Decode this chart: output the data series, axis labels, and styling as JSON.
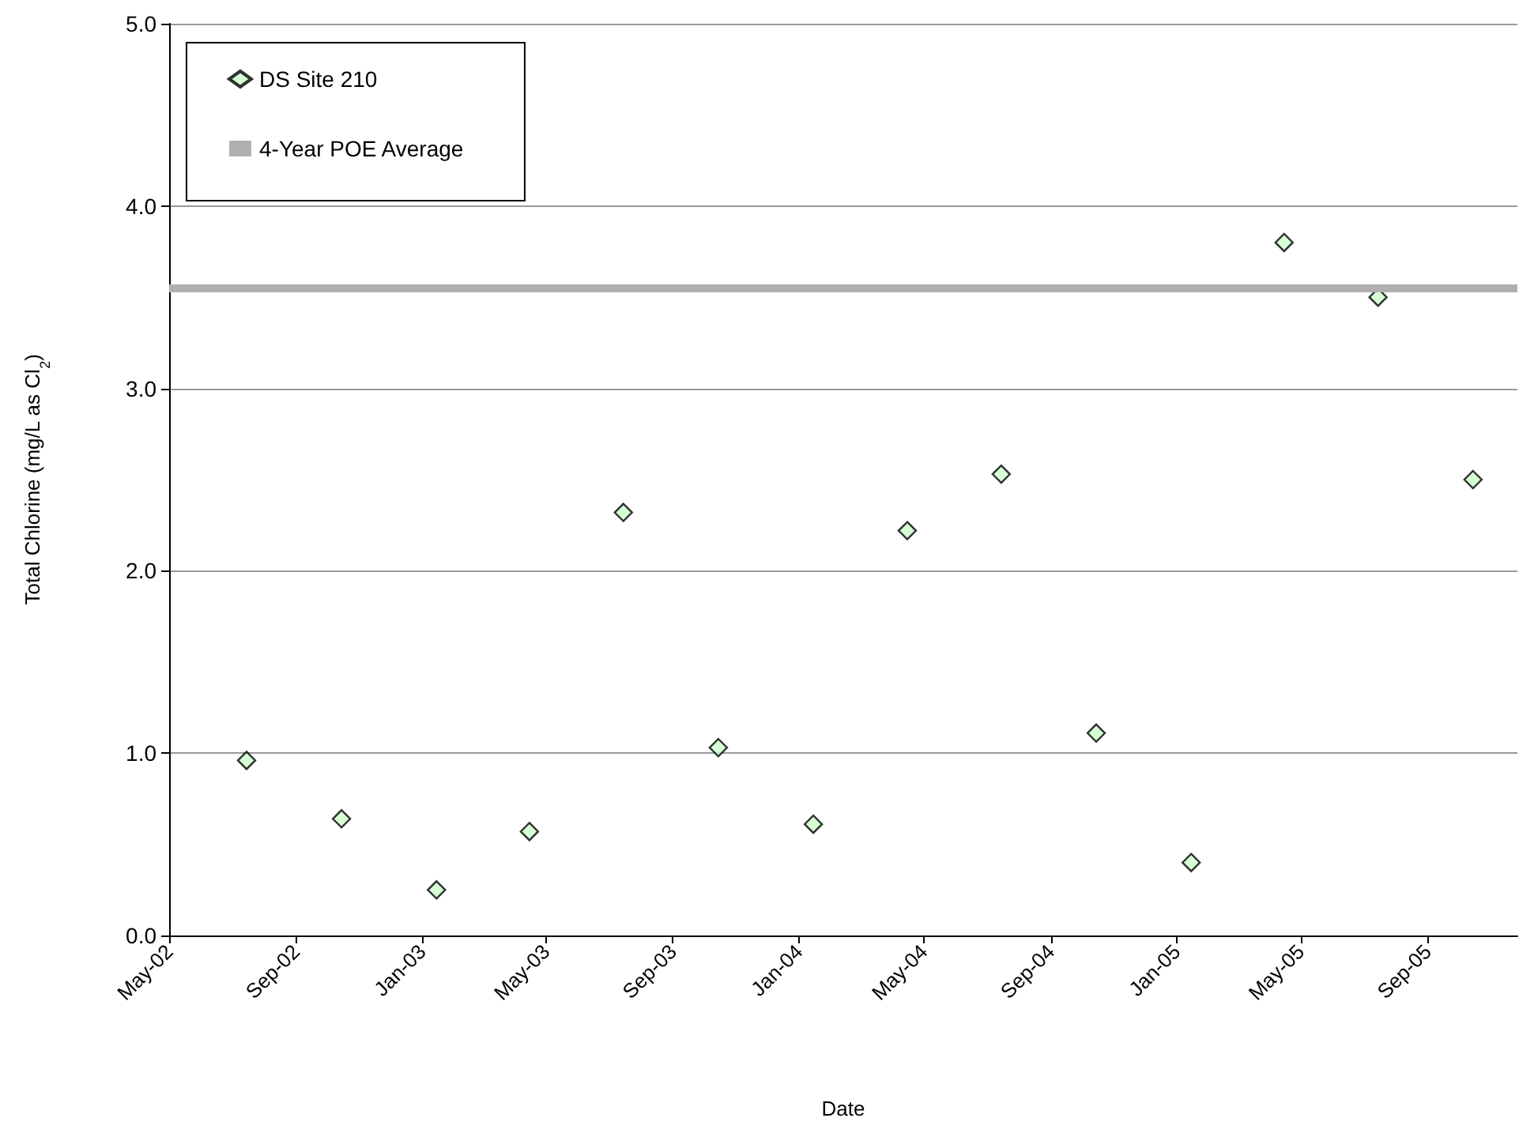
{
  "chart_data": {
    "type": "scatter",
    "xlabel": "Date",
    "ylabel": "Total Chlorine (mg/L as Cl$_{2}$)",
    "x": [
      "2002-07-15",
      "2002-10-15",
      "2003-01-15",
      "2003-04-15",
      "2003-07-15",
      "2003-10-15",
      "2004-01-15",
      "2004-04-15",
      "2004-07-15",
      "2004-10-15",
      "2005-01-15",
      "2005-04-15",
      "2005-07-15",
      "2005-10-15"
    ],
    "series": [
      {
        "name": "DS Site 210",
        "color": "#ccffcc",
        "values": [
          0.96,
          0.64,
          0.25,
          0.57,
          2.32,
          1.03,
          0.61,
          2.22,
          2.53,
          1.11,
          0.4,
          3.8,
          3.5,
          2.5
        ]
      }
    ],
    "marker": "diamond",
    "xlim": [
      "2002-05-01",
      "2005-11-27"
    ],
    "xticks": [
      {
        "value": "2002-05-01",
        "label": "May-02"
      },
      {
        "value": "2002-09-01",
        "label": "Sep-02"
      },
      {
        "value": "2003-01-01",
        "label": "Jan-03"
      },
      {
        "value": "2003-05-01",
        "label": "May-03"
      },
      {
        "value": "2003-09-01",
        "label": "Sep-03"
      },
      {
        "value": "2004-01-01",
        "label": "Jan-04"
      },
      {
        "value": "2004-05-01",
        "label": "May-04"
      },
      {
        "value": "2004-09-01",
        "label": "Sep-04"
      },
      {
        "value": "2005-01-01",
        "label": "Jan-05"
      },
      {
        "value": "2005-05-01",
        "label": "May-05"
      },
      {
        "value": "2005-09-01",
        "label": "Sep-05"
      }
    ],
    "ylim": [
      0,
      5
    ],
    "yticks": [
      {
        "value": 0,
        "label": "0.0"
      },
      {
        "value": 1,
        "label": "1.0"
      },
      {
        "value": 2,
        "label": "2.0"
      },
      {
        "value": 3,
        "label": "3.0"
      },
      {
        "value": 4,
        "label": "4.0"
      },
      {
        "value": 5,
        "label": "5.0"
      }
    ],
    "ref_lines": [
      {
        "axis": "y",
        "value": 3.55,
        "label": "4-Year POE Average",
        "color": "#b0b0b0"
      }
    ],
    "grid": "y",
    "legend": "top left"
  }
}
